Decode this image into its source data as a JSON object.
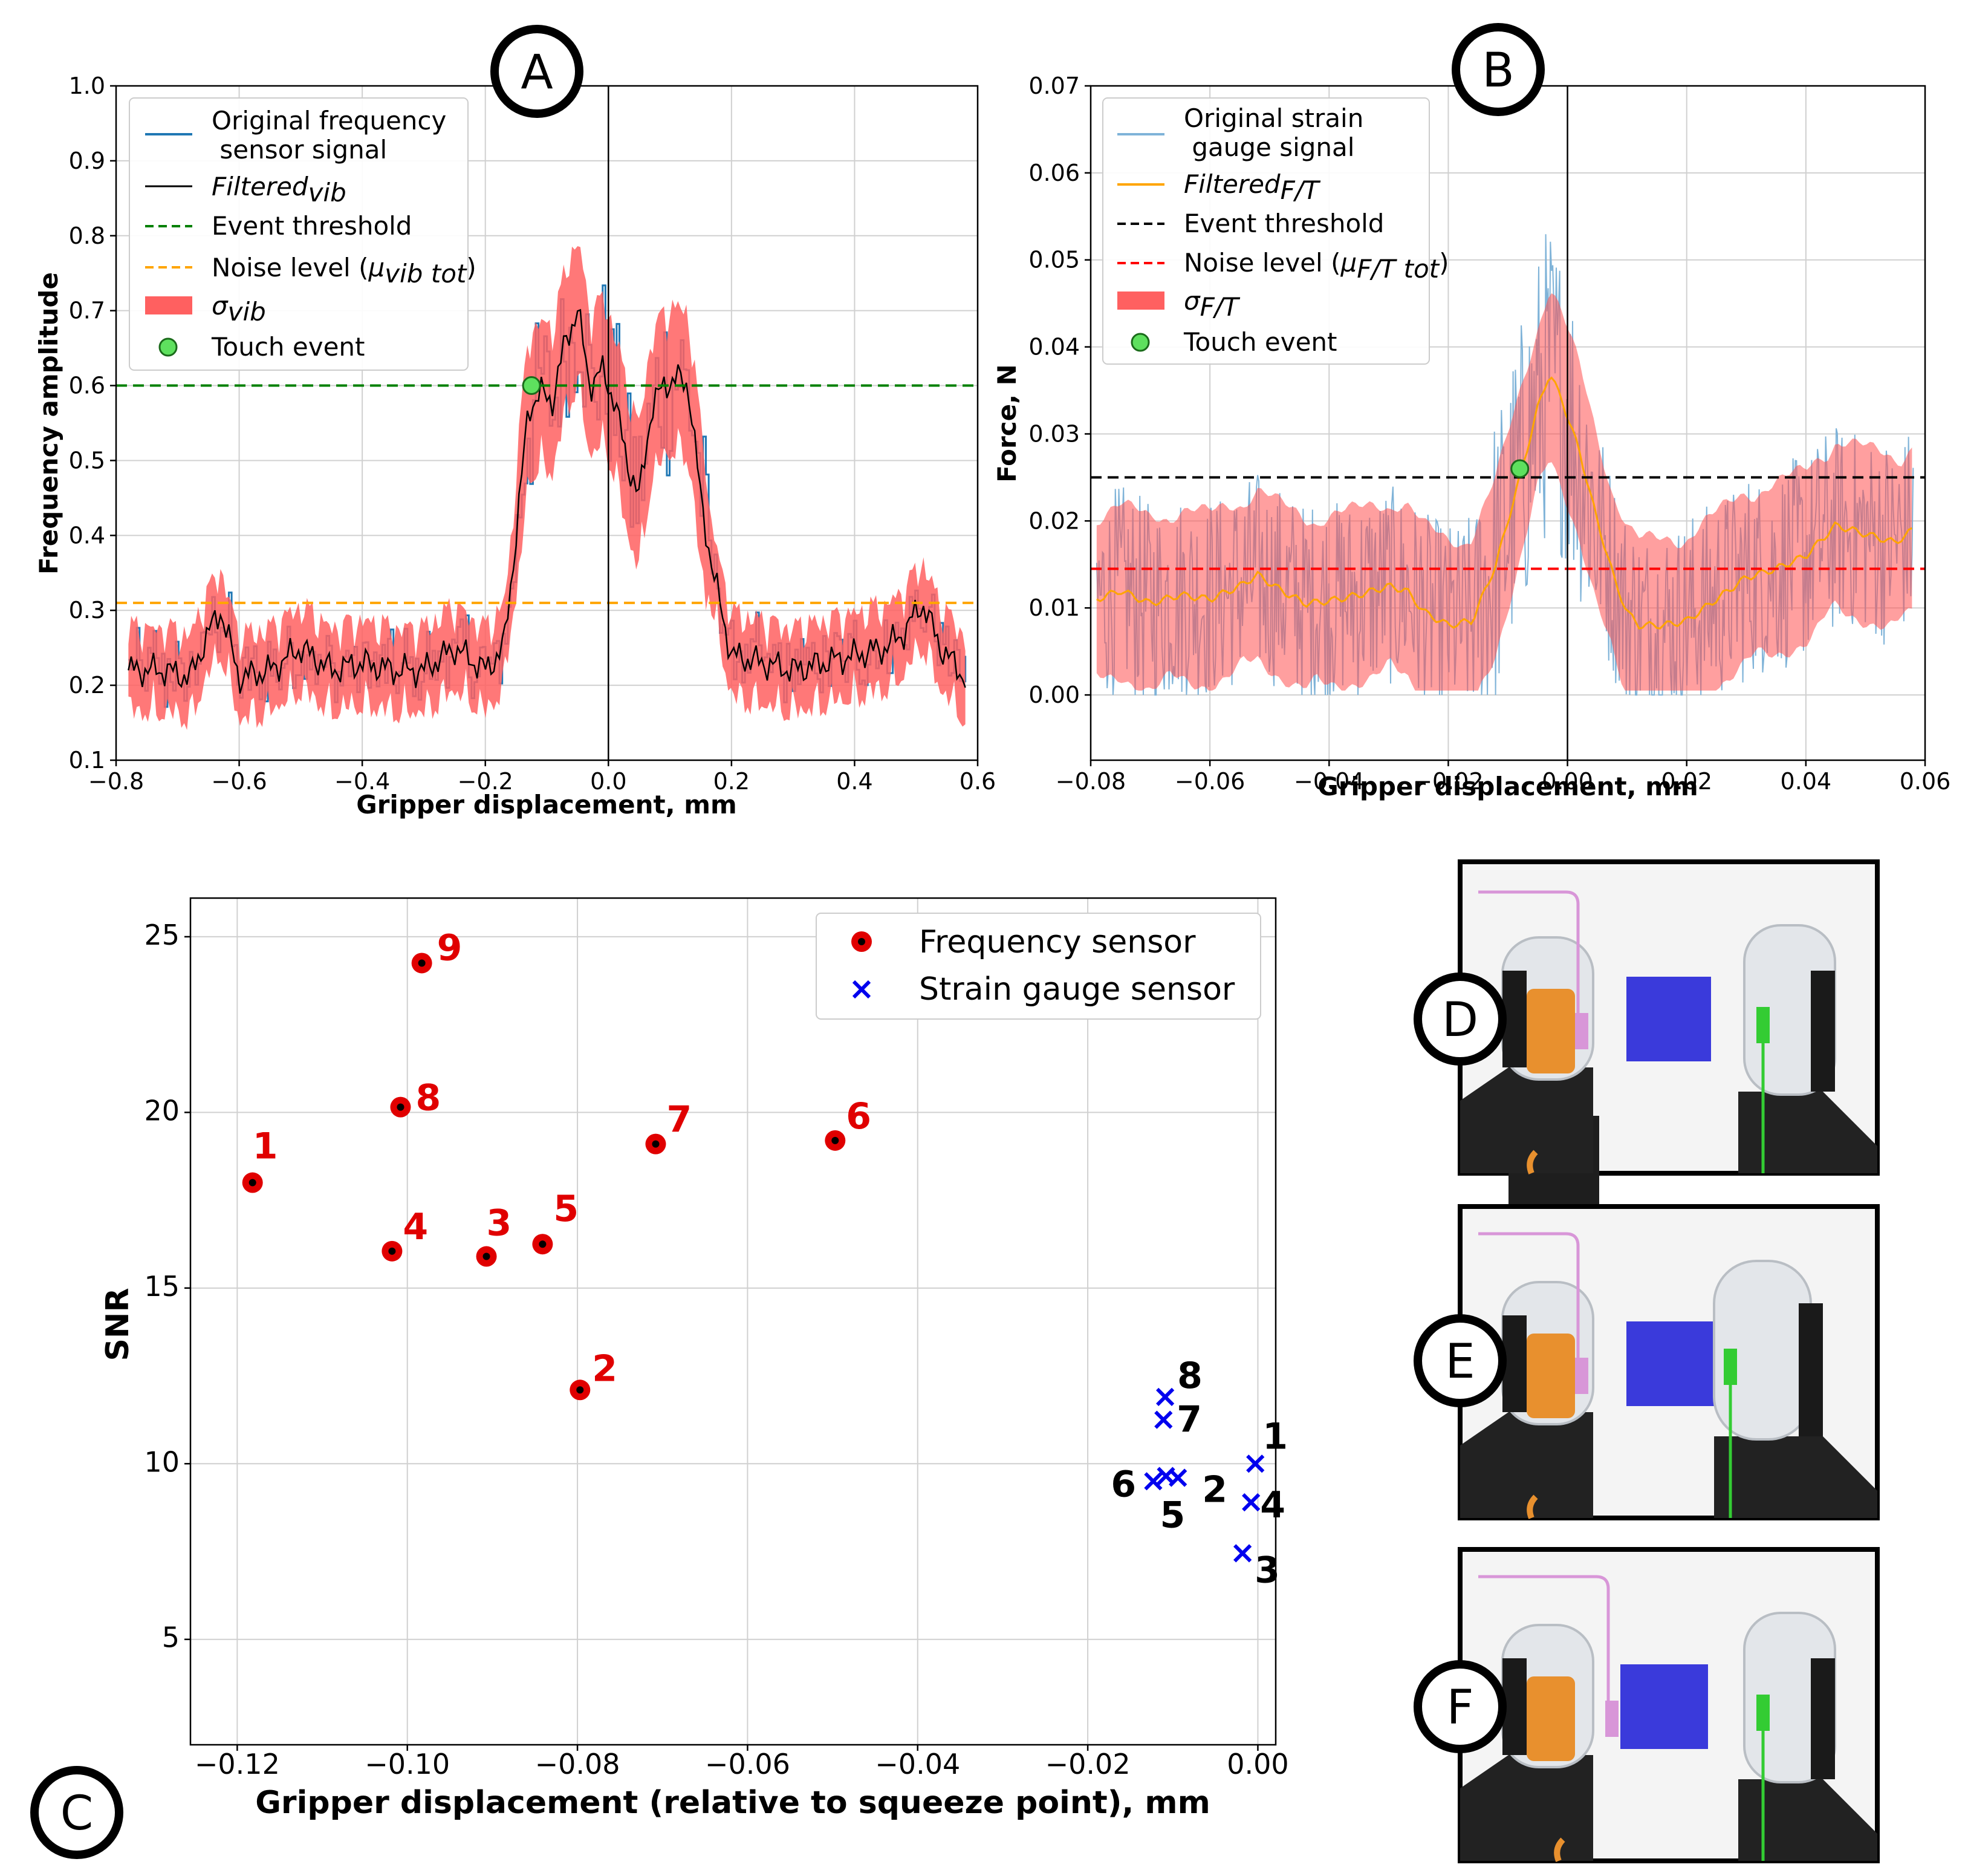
{
  "panels": {
    "A": {
      "badge": "A"
    },
    "B": {
      "badge": "B"
    },
    "C": {
      "badge": "C"
    },
    "D": {
      "badge": "D"
    },
    "E": {
      "badge": "E"
    },
    "F": {
      "badge": "F"
    }
  },
  "colors": {
    "blue_signal": "#1f77b4",
    "light_blue_signal": "#7fb3d8",
    "filtered_black": "#000000",
    "filtered_orange": "#ffa500",
    "green_threshold": "#008000",
    "orange_noise": "#ffa500",
    "red_noise": "#ff0000",
    "sigma_fill": "#ff6060",
    "touch_event": "#5ee05e",
    "freq_sensor": "#e00000",
    "strain_sensor": "#0000ee",
    "block_blue": "#3a3adb",
    "orange_sensor": "#e8902e",
    "green_gauge": "#33cc33",
    "pink_wire": "#d896d8"
  },
  "chart_data": [
    {
      "id": "A",
      "type": "line",
      "xlabel": "Gripper displacement, mm",
      "ylabel": "Frequency amplitude",
      "xlim": [
        -0.8,
        0.6
      ],
      "ylim": [
        0.1,
        1.0
      ],
      "xticks": [
        "−0.8",
        "−0.6",
        "−0.4",
        "−0.2",
        "0.0",
        "0.2",
        "0.4",
        "0.6"
      ],
      "yticks": [
        "0.1",
        "0.2",
        "0.3",
        "0.4",
        "0.5",
        "0.6",
        "0.7",
        "0.8",
        "0.9",
        "1.0"
      ],
      "event_threshold": 0.6,
      "noise_level": 0.31,
      "touch_event": {
        "x": -0.125,
        "y": 0.6
      },
      "legend": {
        "original_line1": "Original frequency",
        "original_line2": " sensor signal",
        "filtered_main": "Filtered",
        "filtered_sub": "vib",
        "threshold": "Event threshold",
        "noise_main": "Noise level (",
        "noise_mu": "μ",
        "noise_sub": "vib tot",
        "noise_close": ")",
        "sigma_main": "σ",
        "sigma_sub": "vib",
        "touch": "Touch event"
      },
      "series": [
        {
          "name": "Filtered vib (envelope)",
          "x": [
            -0.78,
            -0.72,
            -0.68,
            -0.65,
            -0.63,
            -0.6,
            -0.55,
            -0.5,
            -0.45,
            -0.4,
            -0.35,
            -0.3,
            -0.25,
            -0.2,
            -0.17,
            -0.15,
            -0.13,
            -0.11,
            -0.09,
            -0.07,
            -0.05,
            -0.03,
            -0.01,
            0.01,
            0.03,
            0.05,
            0.07,
            0.09,
            0.11,
            0.13,
            0.15,
            0.17,
            0.2,
            0.25,
            0.3,
            0.35,
            0.4,
            0.45,
            0.48,
            0.51,
            0.54,
            0.58
          ],
          "values": [
            0.22,
            0.22,
            0.21,
            0.27,
            0.3,
            0.21,
            0.22,
            0.25,
            0.22,
            0.23,
            0.22,
            0.22,
            0.25,
            0.22,
            0.25,
            0.4,
            0.57,
            0.59,
            0.58,
            0.66,
            0.7,
            0.6,
            0.62,
            0.58,
            0.5,
            0.45,
            0.57,
            0.6,
            0.61,
            0.6,
            0.45,
            0.35,
            0.24,
            0.23,
            0.22,
            0.23,
            0.24,
            0.25,
            0.27,
            0.31,
            0.25,
            0.21
          ]
        }
      ]
    },
    {
      "id": "B",
      "type": "line",
      "xlabel": "Gripper displacement, mm",
      "ylabel": "Force, N",
      "xlim": [
        -0.08,
        0.06
      ],
      "ylim": [
        -0.0075,
        0.07
      ],
      "xticks": [
        "−0.08",
        "−0.06",
        "−0.04",
        "−0.02",
        "0.00",
        "0.02",
        "0.04",
        "0.06"
      ],
      "yticks": [
        "0.00",
        "0.01",
        "0.02",
        "0.03",
        "0.04",
        "0.05",
        "0.06",
        "0.07"
      ],
      "event_threshold": 0.025,
      "noise_level": 0.0145,
      "touch_event": {
        "x": -0.008,
        "y": 0.026
      },
      "legend": {
        "original_line1": "Original strain",
        "original_line2": " gauge signal",
        "filtered_main": "Filtered",
        "filtered_sub": "F/T",
        "threshold": "Event threshold",
        "noise_main": "Noise level (",
        "noise_mu": "μ",
        "noise_sub": "F/T tot",
        "noise_close": ")",
        "sigma_main": "σ",
        "sigma_sub": "F/T",
        "touch": "Touch event"
      },
      "series": [
        {
          "name": "Filtered F/T",
          "x": [
            -0.079,
            -0.075,
            -0.07,
            -0.065,
            -0.06,
            -0.055,
            -0.052,
            -0.048,
            -0.044,
            -0.04,
            -0.035,
            -0.03,
            -0.027,
            -0.024,
            -0.02,
            -0.016,
            -0.012,
            -0.008,
            -0.005,
            -0.003,
            -0.001,
            0.002,
            0.005,
            0.008,
            0.01,
            0.012,
            0.016,
            0.02,
            0.025,
            0.03,
            0.035,
            0.04,
            0.045,
            0.05,
            0.055,
            0.058
          ],
          "values": [
            0.011,
            0.012,
            0.0105,
            0.0115,
            0.011,
            0.0125,
            0.0138,
            0.012,
            0.0105,
            0.0108,
            0.0115,
            0.0125,
            0.012,
            0.0095,
            0.008,
            0.0085,
            0.015,
            0.025,
            0.033,
            0.037,
            0.034,
            0.028,
            0.02,
            0.013,
            0.0095,
            0.008,
            0.008,
            0.0085,
            0.011,
            0.0135,
            0.0145,
            0.016,
            0.0195,
            0.0185,
            0.0175,
            0.019
          ]
        }
      ]
    },
    {
      "id": "C",
      "type": "scatter",
      "xlabel": "Gripper displacement (relative to squeeze point), mm",
      "ylabel": "SNR",
      "xlim": [
        -0.1255,
        0.0021
      ],
      "ylim": [
        2.0,
        26.1
      ],
      "xticks": [
        "−0.12",
        "−0.10",
        "−0.08",
        "−0.06",
        "−0.04",
        "−0.02",
        "0.00"
      ],
      "yticks": [
        "5",
        "10",
        "15",
        "20",
        "25"
      ],
      "legend_placement": "top-right",
      "series": [
        {
          "name": "Frequency sensor",
          "marker": "dot",
          "points": [
            {
              "label": "1",
              "x": -0.1182,
              "y": 18.0
            },
            {
              "label": "2",
              "x": -0.0797,
              "y": 12.1
            },
            {
              "label": "3",
              "x": -0.0907,
              "y": 15.9
            },
            {
              "label": "4",
              "x": -0.1018,
              "y": 16.05
            },
            {
              "label": "5",
              "x": -0.0841,
              "y": 16.25
            },
            {
              "label": "6",
              "x": -0.0497,
              "y": 19.2
            },
            {
              "label": "7",
              "x": -0.0708,
              "y": 19.1
            },
            {
              "label": "8",
              "x": -0.1008,
              "y": 20.15
            },
            {
              "label": "9",
              "x": -0.0983,
              "y": 24.25
            }
          ]
        },
        {
          "name": "Strain gauge sensor",
          "marker": "x",
          "points": [
            {
              "label": "1",
              "x": -0.0003,
              "y": 10.0
            },
            {
              "label": "2",
              "x": -0.0094,
              "y": 9.6
            },
            {
              "label": "3",
              "x": -0.0018,
              "y": 7.45
            },
            {
              "label": "4",
              "x": -0.0008,
              "y": 8.9
            },
            {
              "label": "5",
              "x": -0.0108,
              "y": 9.65
            },
            {
              "label": "6",
              "x": -0.0123,
              "y": 9.5
            },
            {
              "label": "7",
              "x": -0.0111,
              "y": 11.25
            },
            {
              "label": "8",
              "x": -0.0109,
              "y": 11.9
            }
          ]
        }
      ]
    }
  ]
}
